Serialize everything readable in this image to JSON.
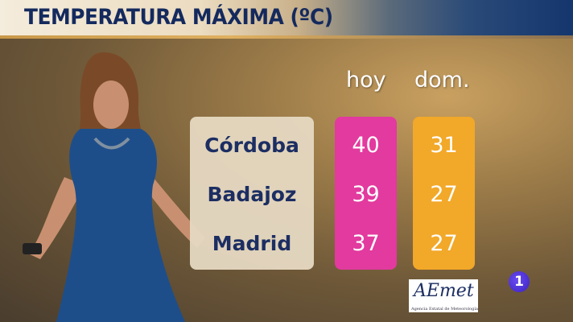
{
  "title": "TEMPERATURA MÁXIMA (ºC)",
  "columns": [
    "hoy",
    "dom."
  ],
  "rows": [
    {
      "city": "Córdoba",
      "hoy": "40",
      "dom": "31"
    },
    {
      "city": "Badajoz",
      "hoy": "39",
      "dom": "27"
    },
    {
      "city": "Madrid",
      "hoy": "37",
      "dom": "27"
    }
  ],
  "colors": {
    "hoy": "#e23a9e",
    "dom": "#f2a828",
    "city_panel": "#e6d9c2",
    "text": "#1c2e62"
  },
  "logos": {
    "aemet": "AEmet",
    "aemet_sub": "Agencia Estatal de Meteorología",
    "channel": "1"
  }
}
